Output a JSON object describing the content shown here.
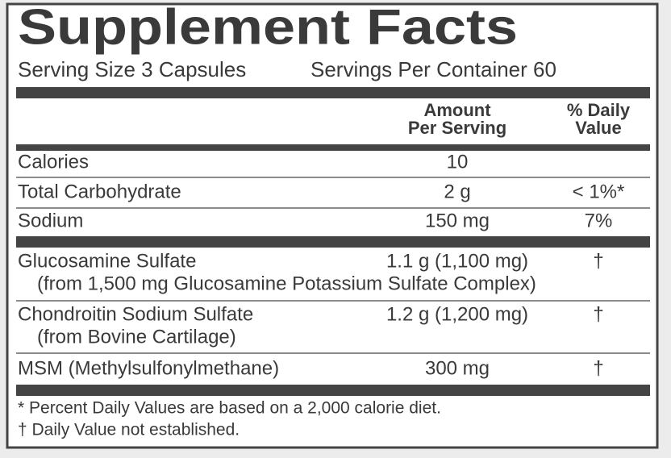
{
  "title": "Supplement Facts",
  "serving": {
    "size": "Serving Size 3 Capsules",
    "per_container": "Servings Per Container 60"
  },
  "header": {
    "amount": [
      "Amount",
      "Per Serving"
    ],
    "daily": [
      "% Daily",
      "Value"
    ]
  },
  "rows": [
    {
      "name": "Calories",
      "amount": "10"
    },
    {
      "name": "Total Carbohydrate",
      "amount": "2 g",
      "daily": "< 1%*"
    },
    {
      "name": "Sodium",
      "amount": "150 mg",
      "daily": "7%"
    },
    {
      "name": "Glucosamine Sulfate",
      "sub": "(from 1,500 mg Glucosamine Potassium Sulfate Complex)",
      "amount": "1.1 g (1,100 mg)",
      "daily": "†"
    },
    {
      "name": "Chondroitin Sodium Sulfate",
      "sub": "(from Bovine Cartilage)",
      "amount": "1.2 g (1,200 mg)",
      "daily": "†"
    },
    {
      "name": "MSM (Methylsulfonylmethane)",
      "amount": "300 mg",
      "daily": "†"
    }
  ],
  "footnotes": [
    "* Percent Daily Values are based on a 2,000 calorie diet.",
    "† Daily Value not established."
  ]
}
